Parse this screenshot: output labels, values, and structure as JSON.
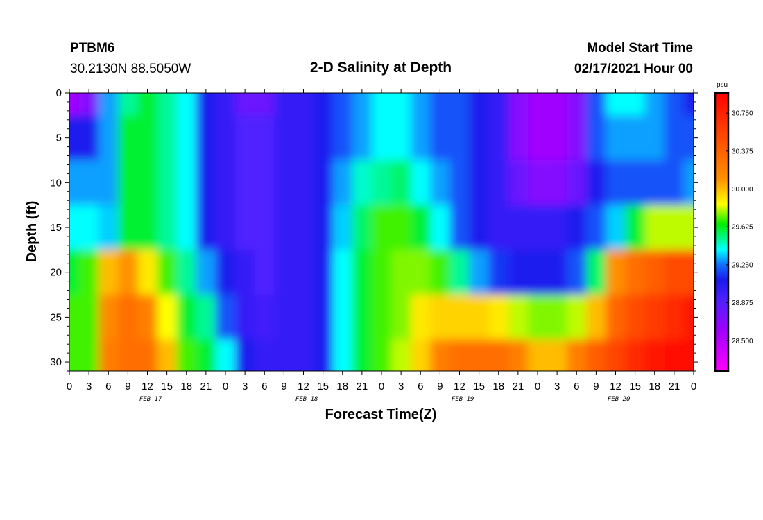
{
  "header": {
    "station": "PTBM6",
    "location": "30.2130N 88.5050W",
    "title": "2-D Salinity at Depth",
    "model_start_label": "Model Start Time",
    "model_start_time": "02/17/2021 Hour 00"
  },
  "chart_data": {
    "type": "heatmap",
    "title": "2-D Salinity at Depth",
    "xlabel": "Forecast Time(Z)",
    "ylabel": "Depth (ft)",
    "x_range_hours": [
      0,
      96
    ],
    "y_range": [
      0,
      31
    ],
    "y_reversed": true,
    "x_tick_labels": [
      "0",
      "3",
      "6",
      "9",
      "12",
      "15",
      "18",
      "21",
      "0",
      "3",
      "6",
      "9",
      "12",
      "15",
      "18",
      "21",
      "0",
      "3",
      "6",
      "9",
      "12",
      "15",
      "18",
      "21",
      "0",
      "3",
      "6",
      "9",
      "12",
      "15",
      "18",
      "21",
      "0"
    ],
    "y_ticks": [
      0,
      5,
      10,
      15,
      20,
      25,
      30
    ],
    "date_labels": [
      "FEB 17",
      "FEB 18",
      "FEB 19",
      "FEB 20"
    ],
    "colorbar": {
      "unit": "psu",
      "range": [
        28.2,
        30.95
      ],
      "tick_values": [
        "30.750",
        "30.375",
        "30.000",
        "29.625",
        "29.250",
        "28.875",
        "28.500"
      ]
    },
    "color_scale": [
      {
        "value": 28.2,
        "color": "#ff00ff"
      },
      {
        "value": 28.6,
        "color": "#a000ff"
      },
      {
        "value": 28.9,
        "color": "#5020ff"
      },
      {
        "value": 29.1,
        "color": "#1a1aee"
      },
      {
        "value": 29.25,
        "color": "#1070ff"
      },
      {
        "value": 29.4,
        "color": "#00ffff"
      },
      {
        "value": 29.65,
        "color": "#00ee00"
      },
      {
        "value": 29.85,
        "color": "#ffff00"
      },
      {
        "value": 30.1,
        "color": "#ff9000"
      },
      {
        "value": 30.95,
        "color": "#ff0000"
      }
    ],
    "depths_ft": [
      0,
      5,
      10,
      15,
      20,
      25,
      30
    ],
    "times_hours": [
      0,
      3,
      6,
      9,
      12,
      15,
      18,
      21,
      24,
      27,
      30,
      33,
      36,
      39,
      42,
      45,
      48,
      51,
      54,
      57,
      60,
      63,
      66,
      69,
      72,
      75,
      78,
      81,
      84,
      87,
      90,
      93,
      96
    ],
    "salinity_psu": [
      [
        28.6,
        28.7,
        29.3,
        29.5,
        29.6,
        29.5,
        29.4,
        29.1,
        29.0,
        28.8,
        28.8,
        29.0,
        29.0,
        29.1,
        29.2,
        29.3,
        29.4,
        29.4,
        29.3,
        29.2,
        29.2,
        29.1,
        29.0,
        28.7,
        28.6,
        28.6,
        28.7,
        29.2,
        29.4,
        29.4,
        29.3,
        29.2,
        29.1
      ],
      [
        29.1,
        29.1,
        29.3,
        29.6,
        29.6,
        29.5,
        29.4,
        29.1,
        29.0,
        28.9,
        28.9,
        29.0,
        29.0,
        29.1,
        29.2,
        29.3,
        29.4,
        29.4,
        29.3,
        29.2,
        29.2,
        29.1,
        29.0,
        28.7,
        28.6,
        28.6,
        28.7,
        29.2,
        29.3,
        29.3,
        29.3,
        29.2,
        29.2
      ],
      [
        29.3,
        29.3,
        29.3,
        29.6,
        29.6,
        29.5,
        29.4,
        29.1,
        29.0,
        28.9,
        28.9,
        29.0,
        29.0,
        29.1,
        29.3,
        29.45,
        29.5,
        29.55,
        29.4,
        29.3,
        29.2,
        29.1,
        29.0,
        28.8,
        28.7,
        28.7,
        28.8,
        29.1,
        29.2,
        29.2,
        29.2,
        29.2,
        29.3
      ],
      [
        29.4,
        29.4,
        29.35,
        29.6,
        29.6,
        29.5,
        29.4,
        29.1,
        29.0,
        28.9,
        28.9,
        29.0,
        29.0,
        29.1,
        29.35,
        29.55,
        29.7,
        29.7,
        29.6,
        29.4,
        29.2,
        29.1,
        29.0,
        29.0,
        29.0,
        29.0,
        29.1,
        29.2,
        29.35,
        29.6,
        29.8,
        29.8,
        29.8
      ],
      [
        29.6,
        29.7,
        30.0,
        30.1,
        29.9,
        29.7,
        29.5,
        29.3,
        29.1,
        29.0,
        28.9,
        29.0,
        29.0,
        29.1,
        29.4,
        29.6,
        29.7,
        29.75,
        29.75,
        29.7,
        29.5,
        29.3,
        29.15,
        29.1,
        29.1,
        29.1,
        29.2,
        29.55,
        30.1,
        30.3,
        30.4,
        30.5,
        30.5
      ],
      [
        29.7,
        29.7,
        30.15,
        30.3,
        30.2,
        29.85,
        29.6,
        29.5,
        29.2,
        29.0,
        28.95,
        29.0,
        29.0,
        29.1,
        29.4,
        29.6,
        29.7,
        29.75,
        29.9,
        29.95,
        29.95,
        29.95,
        29.9,
        29.8,
        29.75,
        29.75,
        29.8,
        30.0,
        30.35,
        30.5,
        30.6,
        30.7,
        30.8
      ],
      [
        29.7,
        29.7,
        30.2,
        30.3,
        30.3,
        30.0,
        29.7,
        29.6,
        29.4,
        29.1,
        29.0,
        29.0,
        29.0,
        29.1,
        29.4,
        29.6,
        29.7,
        29.8,
        29.95,
        30.2,
        30.3,
        30.3,
        30.3,
        30.2,
        30.0,
        30.0,
        30.2,
        30.4,
        30.55,
        30.7,
        30.8,
        30.85,
        30.9
      ]
    ]
  }
}
